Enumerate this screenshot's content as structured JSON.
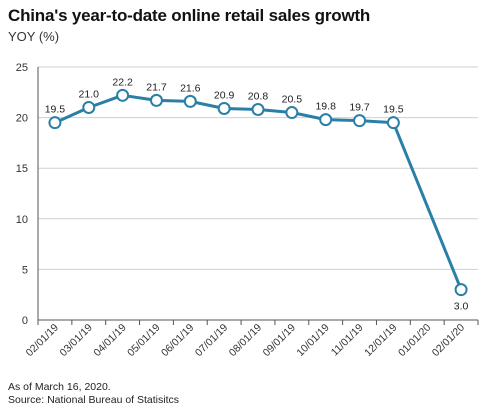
{
  "title": "China's year-to-date online retail sales growth",
  "subtitle": "YOY (%)",
  "footnote": "As of March 16, 2020.",
  "source": "Source: National Bureau of Statisitcs",
  "colors": {
    "line": "#2a7fa6",
    "grid": "#cfcfcf",
    "axis": "#555555",
    "marker_fill": "#ffffff"
  },
  "chart_data": {
    "type": "line",
    "title": "China's year-to-date online retail sales growth",
    "ylabel": "YOY (%)",
    "xlabel": "",
    "ylim": [
      0,
      25
    ],
    "yticks": [
      0,
      5,
      10,
      15,
      20,
      25
    ],
    "grid": "horizontal",
    "categories": [
      "02/01/19",
      "03/01/19",
      "04/01/19",
      "05/01/19",
      "06/01/19",
      "07/01/19",
      "08/01/19",
      "09/01/19",
      "10/01/19",
      "11/01/19",
      "12/01/19",
      "01/01/20",
      "02/01/20"
    ],
    "series": [
      {
        "values": [
          19.5,
          21.0,
          22.2,
          21.7,
          21.6,
          20.9,
          20.8,
          20.5,
          19.8,
          19.7,
          19.5,
          null,
          3.0
        ],
        "labels": [
          "19.5",
          "21.0",
          "22.2",
          "21.7",
          "21.6",
          "20.9",
          "20.8",
          "20.5",
          "19.8",
          "19.7",
          "19.5",
          "",
          "3.0"
        ]
      }
    ]
  }
}
